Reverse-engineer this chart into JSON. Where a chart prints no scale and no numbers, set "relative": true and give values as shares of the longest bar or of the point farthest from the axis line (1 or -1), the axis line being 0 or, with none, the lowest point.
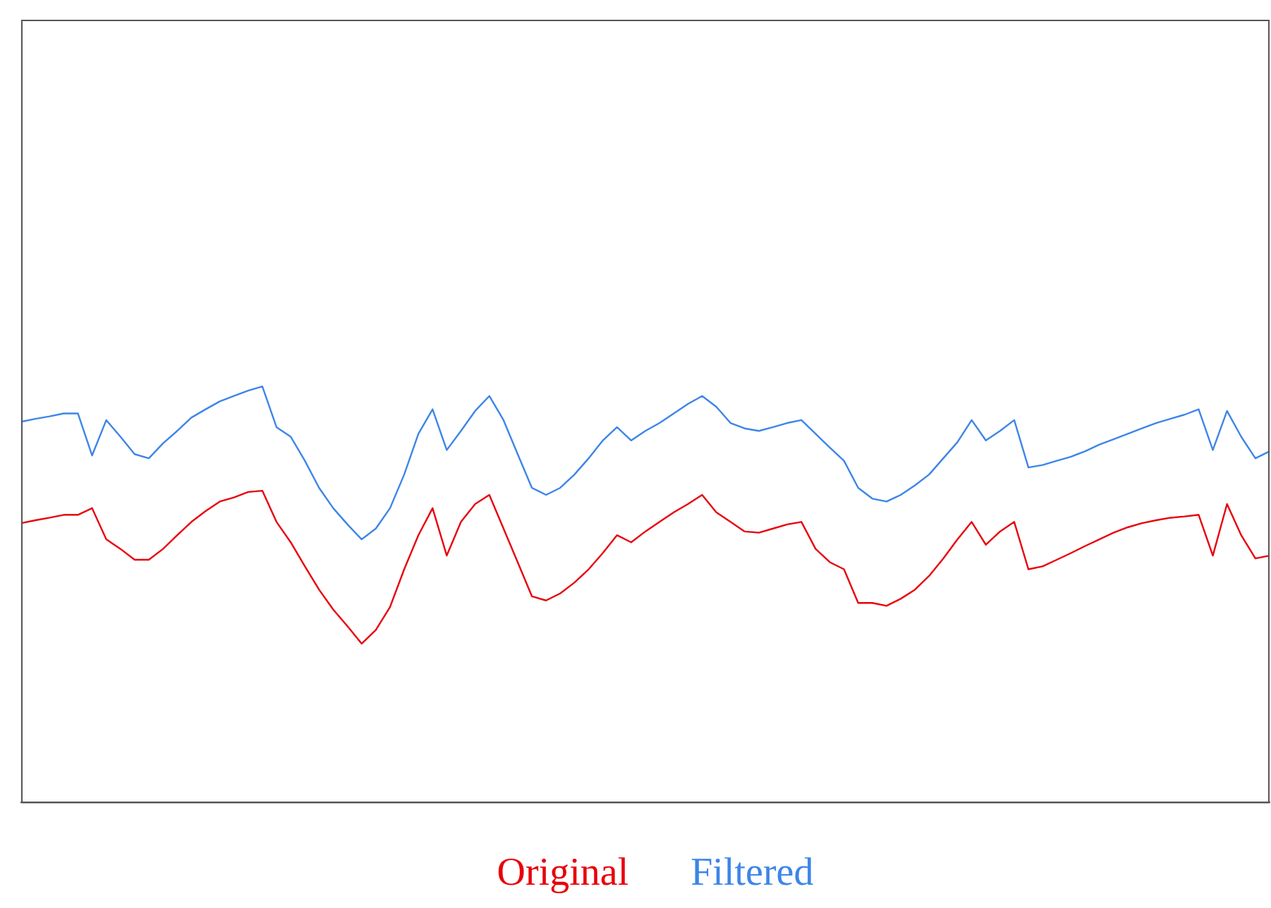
{
  "chart_data": {
    "type": "line",
    "relative": true,
    "legend": "bottom",
    "grid": false,
    "marker": "none",
    "line_style": "solid",
    "categories": [
      null,
      null,
      null,
      null,
      null,
      null,
      null,
      null,
      null,
      null,
      null,
      null,
      null,
      null,
      null,
      null,
      null,
      null,
      null,
      null,
      null,
      null,
      null,
      null,
      null,
      null,
      null,
      null,
      null,
      null,
      null,
      null,
      null,
      null,
      null,
      null,
      null,
      null,
      null,
      null,
      null,
      null,
      null,
      null,
      null,
      null,
      null,
      null,
      null,
      null,
      null,
      null,
      null,
      null,
      null,
      null,
      null,
      null,
      null,
      null,
      null,
      null,
      null,
      null,
      null,
      null,
      null,
      null,
      null,
      null,
      null,
      null,
      null,
      null,
      null,
      null,
      null,
      null,
      null,
      null,
      null,
      null,
      null,
      null,
      null,
      null,
      null,
      null,
      null
    ],
    "series": [
      {
        "name": "Original",
        "color": "#e8000b",
        "values": [
          0.671,
          0.678,
          0.684,
          0.691,
          0.691,
          0.707,
          0.632,
          0.609,
          0.583,
          0.583,
          0.609,
          0.642,
          0.674,
          0.7,
          0.723,
          0.733,
          0.746,
          0.749,
          0.674,
          0.625,
          0.567,
          0.511,
          0.463,
          0.423,
          0.381,
          0.414,
          0.469,
          0.56,
          0.642,
          0.707,
          0.593,
          0.674,
          0.717,
          0.739,
          0.658,
          0.577,
          0.495,
          0.485,
          0.502,
          0.528,
          0.56,
          0.599,
          0.642,
          0.625,
          0.651,
          0.674,
          0.697,
          0.717,
          0.739,
          0.697,
          0.674,
          0.651,
          0.648,
          0.658,
          0.668,
          0.674,
          0.609,
          0.577,
          0.56,
          0.479,
          0.479,
          0.472,
          0.489,
          0.511,
          0.544,
          0.586,
          0.632,
          0.674,
          0.619,
          0.651,
          0.674,
          0.56,
          0.567,
          0.583,
          0.599,
          0.616,
          0.632,
          0.648,
          0.661,
          0.671,
          0.678,
          0.684,
          0.687,
          0.691,
          0.593,
          0.717,
          0.642,
          0.586,
          0.593
        ]
      },
      {
        "name": "Filtered",
        "color": "#3d85e8",
        "values": [
          0.915,
          0.922,
          0.928,
          0.935,
          0.935,
          0.834,
          0.919,
          0.879,
          0.837,
          0.827,
          0.863,
          0.893,
          0.925,
          0.945,
          0.964,
          0.977,
          0.99,
          1,
          0.902,
          0.879,
          0.821,
          0.756,
          0.707,
          0.668,
          0.632,
          0.658,
          0.707,
          0.788,
          0.886,
          0.945,
          0.847,
          0.893,
          0.941,
          0.977,
          0.919,
          0.837,
          0.756,
          0.739,
          0.756,
          0.788,
          0.827,
          0.87,
          0.902,
          0.87,
          0.893,
          0.912,
          0.935,
          0.958,
          0.977,
          0.951,
          0.912,
          0.899,
          0.893,
          0.902,
          0.912,
          0.919,
          0.886,
          0.853,
          0.821,
          0.756,
          0.73,
          0.723,
          0.739,
          0.762,
          0.788,
          0.827,
          0.866,
          0.919,
          0.87,
          0.893,
          0.919,
          0.805,
          0.811,
          0.821,
          0.831,
          0.844,
          0.86,
          0.873,
          0.886,
          0.899,
          0.912,
          0.922,
          0.932,
          0.945,
          0.847,
          0.941,
          0.879,
          0.827,
          0.844
        ]
      }
    ]
  }
}
